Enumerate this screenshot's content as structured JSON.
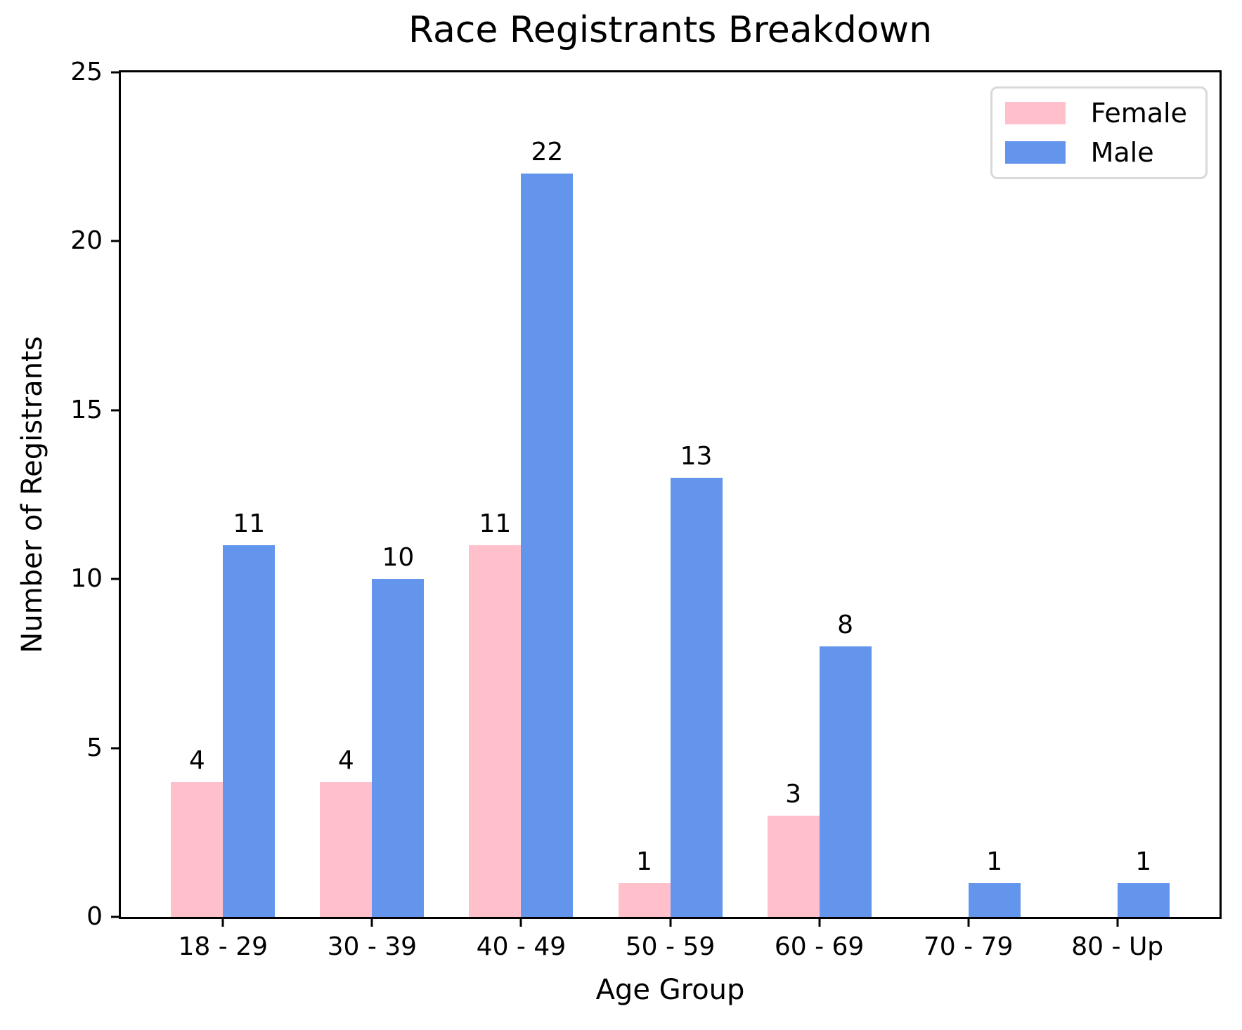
{
  "chart_data": {
    "type": "bar",
    "title": "Race Registrants Breakdown",
    "xlabel": "Age Group",
    "ylabel": "Number of Registrants",
    "categories": [
      "18 - 29",
      "30 - 39",
      "40 - 49",
      "50 - 59",
      "60 - 69",
      "70 - 79",
      "80 - Up"
    ],
    "series": [
      {
        "name": "Female",
        "color": "#FFC0CB",
        "values": [
          4,
          4,
          11,
          1,
          3,
          0,
          0
        ]
      },
      {
        "name": "Male",
        "color": "#6495ED",
        "values": [
          11,
          10,
          22,
          13,
          8,
          1,
          1
        ]
      }
    ],
    "ylim": [
      0,
      25
    ],
    "yticks": [
      0,
      5,
      10,
      15,
      20,
      25
    ],
    "grid": false,
    "legend_position": "upper right",
    "bar_value_labels": true,
    "background_color": "#ffffff",
    "text_color": "#000000"
  }
}
